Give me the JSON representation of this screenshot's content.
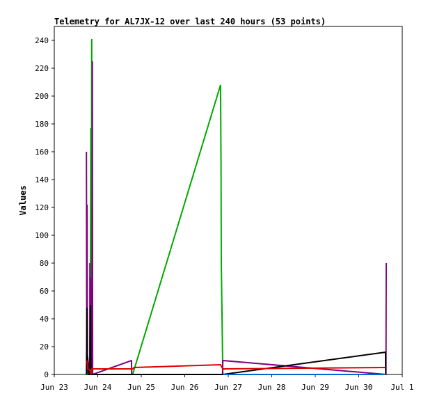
{
  "chart_data": {
    "type": "line",
    "title": "Telemetry for AL7JX-12 over last 240 hours (53 points)",
    "xlabel": "",
    "ylabel": "Values",
    "ylim": [
      0,
      250
    ],
    "xlim": [
      "2023-06-23 00:00",
      "2023-07-01 00:00"
    ],
    "y_ticks": [
      0,
      20,
      40,
      60,
      80,
      100,
      120,
      140,
      160,
      180,
      200,
      220,
      240
    ],
    "x_ticks": [
      {
        "label": "Jun 23",
        "x": "2023-06-23 00:00"
      },
      {
        "label": "Jun 24",
        "x": "2023-06-24 00:00"
      },
      {
        "label": "Jun 25",
        "x": "2023-06-25 00:00"
      },
      {
        "label": "Jun 26",
        "x": "2023-06-26 00:00"
      },
      {
        "label": "Jun 27",
        "x": "2023-06-27 00:00"
      },
      {
        "label": "Jun 28",
        "x": "2023-06-28 00:00"
      },
      {
        "label": "Jun 29",
        "x": "2023-06-29 00:00"
      },
      {
        "label": "Jun 30",
        "x": "2023-06-30 00:00"
      },
      {
        "label": "Jul 1",
        "x": "2023-07-01 00:00"
      }
    ],
    "grid": false,
    "series": [
      {
        "color": "#00aa00",
        "points": [
          [
            "2023-06-23 17:45",
            0
          ],
          [
            "2023-06-23 18:15",
            0
          ],
          [
            "2023-06-23 18:25",
            0
          ],
          [
            "2023-06-23 19:50",
            0
          ],
          [
            "2023-06-23 20:10",
            177
          ],
          [
            "2023-06-23 20:20",
            0
          ],
          [
            "2023-06-23 20:40",
            241
          ],
          [
            "2023-06-23 20:55",
            0
          ],
          [
            "2023-06-23 21:10",
            0
          ],
          [
            "2023-06-24 19:15",
            0
          ],
          [
            "2023-06-26 19:45",
            208
          ],
          [
            "2023-06-26 20:00",
            150
          ],
          [
            "2023-06-26 20:10",
            80
          ],
          [
            "2023-06-26 21:00",
            0
          ],
          [
            "2023-06-30 15:00",
            0
          ]
        ]
      },
      {
        "color": "#800080",
        "points": [
          [
            "2023-06-23 17:45",
            160
          ],
          [
            "2023-06-23 17:55",
            0
          ],
          [
            "2023-06-23 18:05",
            122
          ],
          [
            "2023-06-23 18:15",
            14
          ],
          [
            "2023-06-23 19:35",
            0
          ],
          [
            "2023-06-23 19:40",
            80
          ],
          [
            "2023-06-23 19:50",
            0
          ],
          [
            "2023-06-23 20:00",
            70
          ],
          [
            "2023-06-23 20:50",
            0
          ],
          [
            "2023-06-23 21:00",
            225
          ],
          [
            "2023-06-23 21:10",
            0
          ],
          [
            "2023-06-24 18:35",
            10
          ],
          [
            "2023-06-24 18:45",
            0
          ],
          [
            "2023-06-26 19:45",
            0
          ],
          [
            "2023-06-26 20:50",
            0
          ],
          [
            "2023-06-26 21:00",
            10
          ],
          [
            "2023-06-30 15:00",
            0
          ],
          [
            "2023-06-30 15:10",
            80
          ]
        ]
      },
      {
        "color": "#000000",
        "points": [
          [
            "2023-06-23 17:45",
            0
          ],
          [
            "2023-06-23 18:05",
            48
          ],
          [
            "2023-06-23 18:15",
            10
          ],
          [
            "2023-06-23 18:35",
            8
          ],
          [
            "2023-06-23 18:45",
            0
          ],
          [
            "2023-06-23 19:40",
            0
          ],
          [
            "2023-06-23 20:00",
            50
          ],
          [
            "2023-06-23 20:10",
            0
          ],
          [
            "2023-06-23 21:10",
            0
          ],
          [
            "2023-06-24 19:15",
            0
          ],
          [
            "2023-06-26 21:00",
            0
          ],
          [
            "2023-06-30 14:45",
            16
          ],
          [
            "2023-06-30 14:55",
            0
          ]
        ]
      },
      {
        "color": "#dd0000",
        "points": [
          [
            "2023-06-23 18:05",
            10
          ],
          [
            "2023-06-23 18:25",
            4
          ],
          [
            "2023-06-23 19:50",
            3
          ],
          [
            "2023-06-23 20:10",
            0
          ],
          [
            "2023-06-23 20:40",
            4
          ],
          [
            "2023-06-24 19:15",
            4
          ],
          [
            "2023-06-24 20:00",
            5
          ],
          [
            "2023-06-26 19:45",
            7
          ],
          [
            "2023-06-26 21:00",
            4
          ],
          [
            "2023-06-30 14:45",
            5
          ]
        ]
      },
      {
        "color": "#0066cc",
        "points": [
          [
            "2023-06-26 21:00",
            0
          ],
          [
            "2023-06-30 15:00",
            0
          ]
        ]
      }
    ]
  }
}
